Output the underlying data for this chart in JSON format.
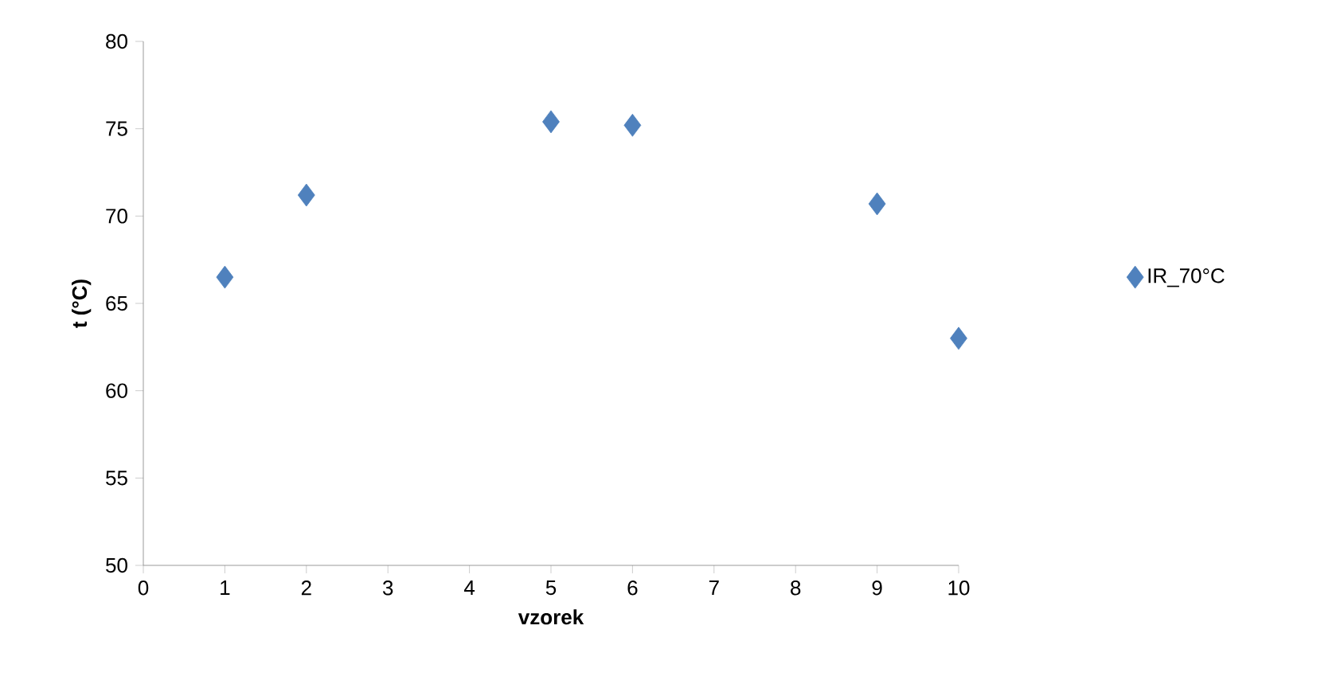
{
  "chart_data": {
    "type": "scatter",
    "xlabel": "vzorek",
    "ylabel": "t (°C)",
    "x": [
      1,
      2,
      5,
      6,
      9,
      10
    ],
    "series": [
      {
        "name": "IR_70°C",
        "color": "#4f81bd",
        "values": [
          66.5,
          71.2,
          75.4,
          75.2,
          70.7,
          63.0
        ]
      }
    ],
    "xlim": [
      0,
      10
    ],
    "ylim": [
      50,
      80
    ],
    "xticks": [
      0,
      1,
      2,
      3,
      4,
      5,
      6,
      7,
      8,
      9,
      10
    ],
    "yticks": [
      50,
      55,
      60,
      65,
      70,
      75,
      80
    ],
    "marker": "diamond",
    "legend": "right",
    "grid": false
  }
}
